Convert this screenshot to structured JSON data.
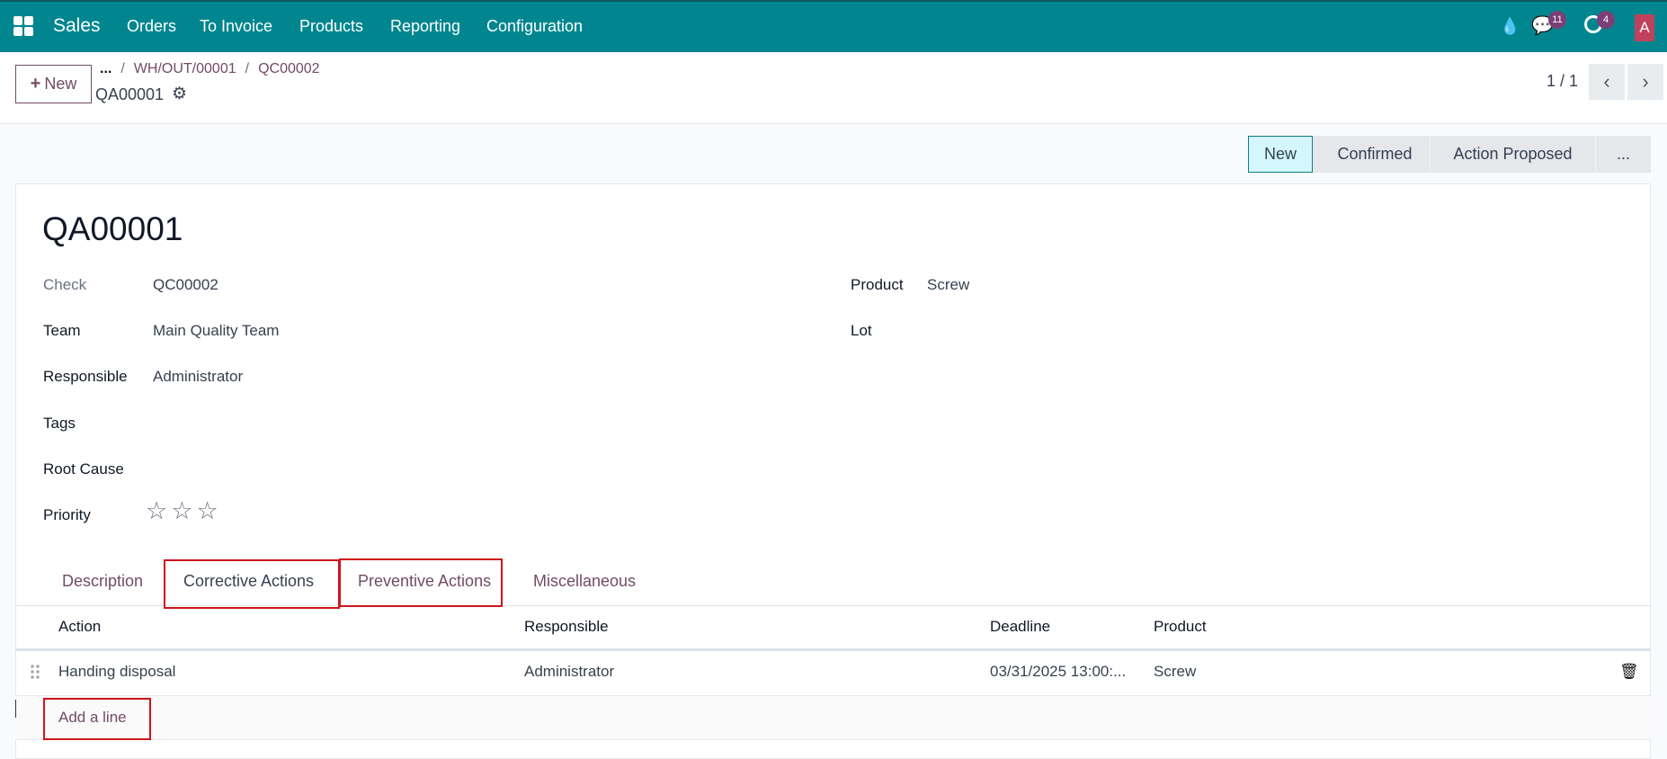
{
  "navbar": {
    "app_name": "Sales",
    "menu": [
      "Orders",
      "To Invoice",
      "Products",
      "Reporting",
      "Configuration"
    ],
    "messages_count": "11",
    "activities_count": "4",
    "avatar_letter": "A",
    "color": "#01868f"
  },
  "control_panel": {
    "new_label": "New",
    "breadcrumb": [
      "...",
      "WH/OUT/00001",
      "QC00002"
    ],
    "current": "QA00001",
    "pager": "1 / 1"
  },
  "statusbar": {
    "stages": [
      "New",
      "Confirmed",
      "Action Proposed",
      "..."
    ],
    "active": "New"
  },
  "form": {
    "title": "QA00001",
    "left_fields": [
      {
        "label": "Check",
        "value": "QC00002"
      },
      {
        "label": "Team",
        "value": "Main Quality Team"
      },
      {
        "label": "Responsible",
        "value": "Administrator"
      },
      {
        "label": "Tags",
        "value": ""
      },
      {
        "label": "Root Cause",
        "value": ""
      },
      {
        "label": "Priority",
        "value": "0 of 3 stars"
      }
    ],
    "right_fields": [
      {
        "label": "Product",
        "value": "Screw"
      },
      {
        "label": "Lot",
        "value": ""
      }
    ],
    "priority_stars": 0
  },
  "tabs": [
    "Description",
    "Corrective Actions",
    "Preventive Actions",
    "Miscellaneous"
  ],
  "active_tab": "Corrective Actions",
  "table": {
    "columns": [
      "Action",
      "Responsible",
      "Deadline",
      "Product"
    ],
    "rows": [
      {
        "action": "Handing disposal",
        "responsible": "Administrator",
        "deadline": "03/31/2025 13:00:...",
        "product": "Screw"
      }
    ],
    "add_line": "Add a line"
  }
}
